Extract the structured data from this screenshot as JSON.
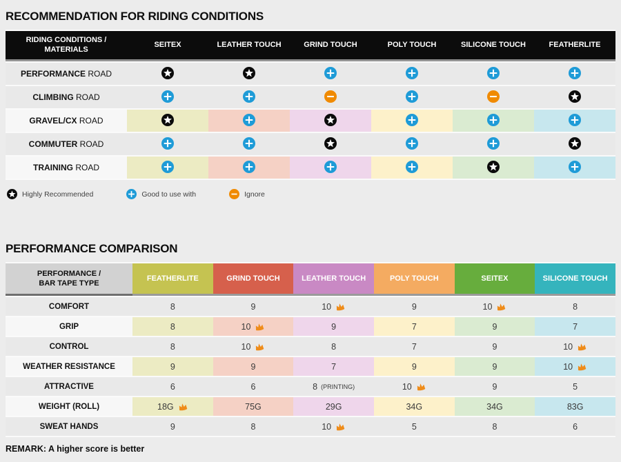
{
  "icons": {
    "star_color": "#0b0b0b",
    "plus_color": "#1e9bd7",
    "minus_color": "#f08a00",
    "crown_color": "#ef8c1a"
  },
  "section1": {
    "title": "RECOMMENDATION FOR RIDING CONDITIONS",
    "table": {
      "corner_line1": "RIDING CONDITIONS /",
      "corner_line2": "MATERIALS",
      "columns": [
        {
          "label": "SEITEX",
          "tint": "#ecebc3"
        },
        {
          "label": "LEATHER TOUCH",
          "tint": "#f5d1c5"
        },
        {
          "label": "GRIND TOUCH",
          "tint": "#efd6eb"
        },
        {
          "label": "POLY TOUCH",
          "tint": "#fdf1ca"
        },
        {
          "label": "SILICONE TOUCH",
          "tint": "#daebd1"
        },
        {
          "label": "FEATHERLITE",
          "tint": "#c7e7ee"
        }
      ],
      "rows": [
        {
          "label_bold": "PERFORMANCE",
          "label_rest": "ROAD",
          "tinted": false,
          "cells": [
            "star",
            "star",
            "plus",
            "plus",
            "plus",
            "plus"
          ]
        },
        {
          "label_bold": "CLIMBING",
          "label_rest": "ROAD",
          "tinted": false,
          "cells": [
            "plus",
            "plus",
            "minus",
            "plus",
            "minus",
            "star"
          ]
        },
        {
          "label_bold": "GRAVEL/CX",
          "label_rest": "ROAD",
          "tinted": true,
          "cells": [
            "star",
            "plus",
            "star",
            "plus",
            "plus",
            "plus"
          ]
        },
        {
          "label_bold": "COMMUTER",
          "label_rest": "ROAD",
          "tinted": false,
          "cells": [
            "plus",
            "plus",
            "star",
            "plus",
            "plus",
            "star"
          ]
        },
        {
          "label_bold": "TRAINING",
          "label_rest": "ROAD",
          "tinted": true,
          "cells": [
            "plus",
            "plus",
            "plus",
            "plus",
            "star",
            "plus"
          ]
        }
      ]
    },
    "legend": [
      {
        "icon": "star",
        "label": "Highly Recommended"
      },
      {
        "icon": "plus",
        "label": "Good to use with"
      },
      {
        "icon": "minus",
        "label": "Ignore"
      }
    ]
  },
  "section2": {
    "title": "PERFORMANCE COMPARISON",
    "table": {
      "corner_line1": "PERFORMANCE /",
      "corner_line2": "BAR TAPE TYPE",
      "columns": [
        {
          "label": "FEATHERLITE",
          "color": "#c5c351",
          "tint": "#ecebc3"
        },
        {
          "label": "GRIND TOUCH",
          "color": "#d6604c",
          "tint": "#f5d1c5"
        },
        {
          "label": "LEATHER TOUCH",
          "color": "#c989c4",
          "tint": "#efd6eb"
        },
        {
          "label": "POLY TOUCH",
          "color": "#f4ab61",
          "tint": "#fdf1ca"
        },
        {
          "label": "SEITEX",
          "color": "#67ad3d",
          "tint": "#daebd1"
        },
        {
          "label": "SILICONE TOUCH",
          "color": "#35b4bd",
          "tint": "#c7e7ee"
        }
      ],
      "rows": [
        {
          "label": "COMFORT",
          "tinted": false,
          "cells": [
            {
              "v": "8"
            },
            {
              "v": "9"
            },
            {
              "v": "10",
              "crown": true
            },
            {
              "v": "9"
            },
            {
              "v": "10",
              "crown": true
            },
            {
              "v": "8"
            }
          ]
        },
        {
          "label": "GRIP",
          "tinted": true,
          "cells": [
            {
              "v": "8"
            },
            {
              "v": "10",
              "crown": true
            },
            {
              "v": "9"
            },
            {
              "v": "7"
            },
            {
              "v": "9"
            },
            {
              "v": "7"
            }
          ]
        },
        {
          "label": "CONTROL",
          "tinted": false,
          "cells": [
            {
              "v": "8"
            },
            {
              "v": "10",
              "crown": true
            },
            {
              "v": "8"
            },
            {
              "v": "7"
            },
            {
              "v": "9"
            },
            {
              "v": "10",
              "crown": true
            }
          ]
        },
        {
          "label": "WEATHER RESISTANCE",
          "tinted": true,
          "cells": [
            {
              "v": "9"
            },
            {
              "v": "9"
            },
            {
              "v": "7"
            },
            {
              "v": "9"
            },
            {
              "v": "9"
            },
            {
              "v": "10",
              "crown": true
            }
          ]
        },
        {
          "label": "ATTRACTIVE",
          "tinted": false,
          "cells": [
            {
              "v": "6"
            },
            {
              "v": "6"
            },
            {
              "v": "8",
              "suffix": "(PRINTING)"
            },
            {
              "v": "10",
              "crown": true
            },
            {
              "v": "9"
            },
            {
              "v": "5"
            }
          ]
        },
        {
          "label": "WEIGHT (ROLL)",
          "tinted": true,
          "cells": [
            {
              "v": "18G",
              "crown": true
            },
            {
              "v": "75G"
            },
            {
              "v": "29G"
            },
            {
              "v": "34G"
            },
            {
              "v": "34G"
            },
            {
              "v": "83G"
            }
          ]
        },
        {
          "label": "SWEAT HANDS",
          "tinted": false,
          "cells": [
            {
              "v": "9"
            },
            {
              "v": "8"
            },
            {
              "v": "10",
              "crown": true
            },
            {
              "v": "5"
            },
            {
              "v": "8"
            },
            {
              "v": "6"
            }
          ]
        }
      ]
    },
    "remark": "REMARK: A higher score is better"
  }
}
